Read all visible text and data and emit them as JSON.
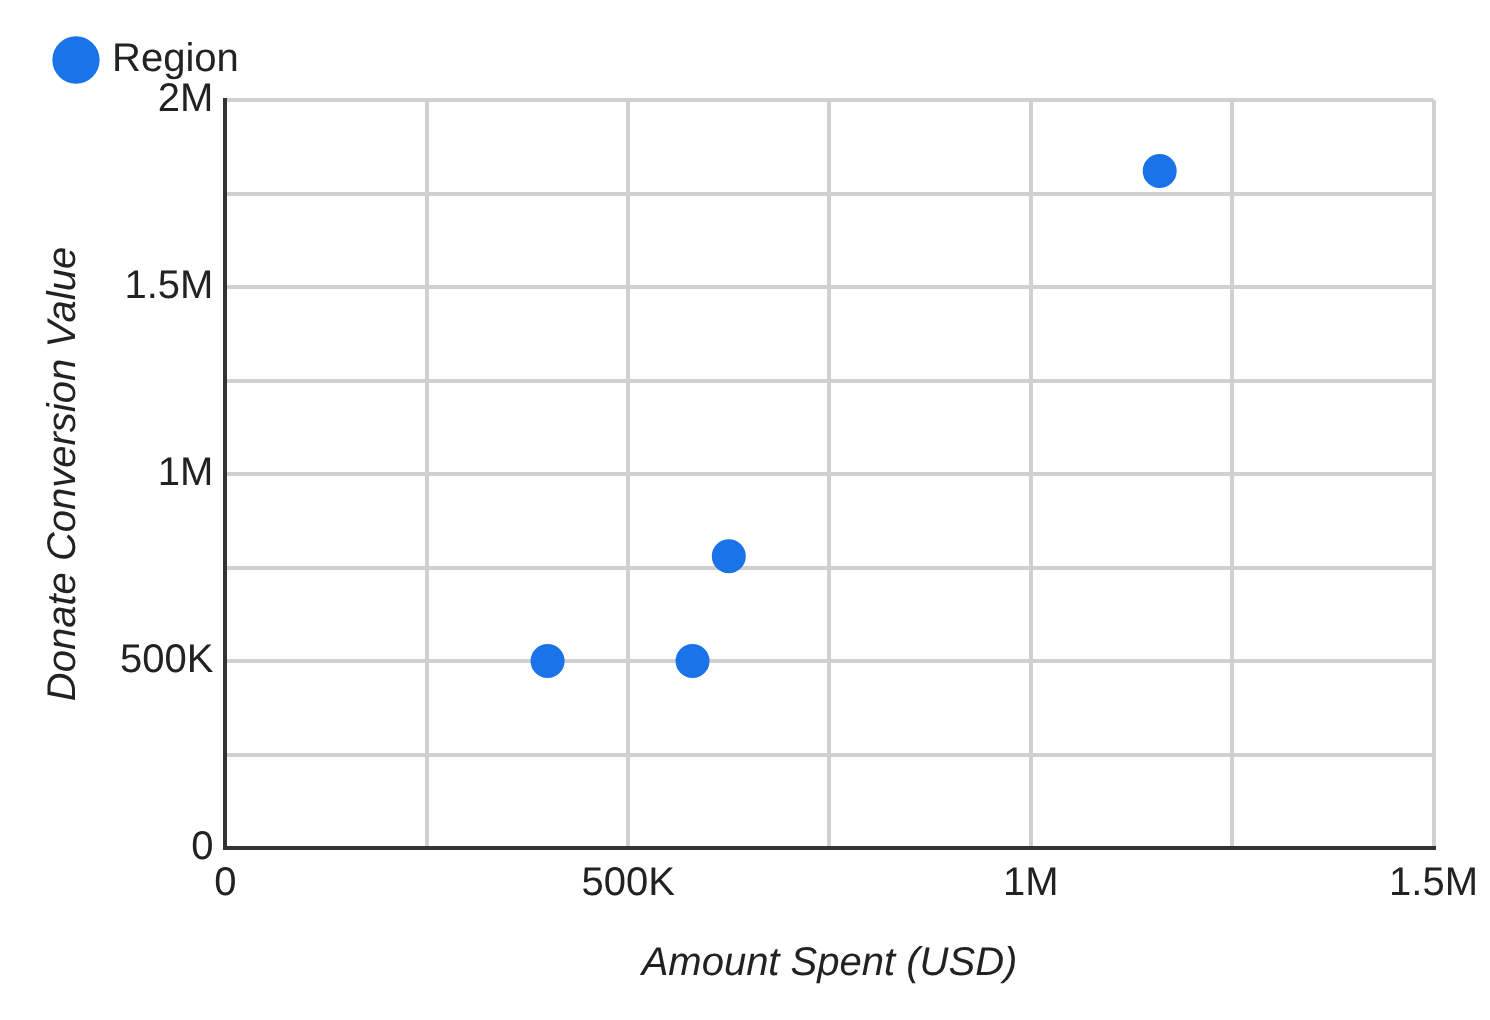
{
  "chart_data": {
    "type": "scatter",
    "xlabel": "Amount Spent (USD)",
    "ylabel": "Donate Conversion Value",
    "x": [
      400000,
      580000,
      625000,
      1160000
    ],
    "series": [
      {
        "name": "Region",
        "color": "#1a73e8",
        "values": [
          500000,
          500000,
          780000,
          1810000
        ]
      }
    ],
    "xlim": [
      0,
      1500000
    ],
    "ylim": [
      0,
      2000000
    ],
    "xticks": [
      0,
      {
        "value": 250000,
        "label": null
      },
      {
        "value": 500000,
        "label": "500K"
      },
      {
        "value": 750000,
        "label": null
      },
      {
        "value": 1000000,
        "label": "1M"
      },
      {
        "value": 1250000,
        "label": null
      },
      {
        "value": 1500000,
        "label": "1.5M"
      }
    ],
    "yticks": [
      0,
      {
        "value": 250000,
        "label": null
      },
      {
        "value": 500000,
        "label": "500K"
      },
      {
        "value": 750000,
        "label": null
      },
      {
        "value": 1000000,
        "label": "1M"
      },
      {
        "value": 1250000,
        "label": null
      },
      {
        "value": 1500000,
        "label": "1.5M"
      },
      {
        "value": 1750000,
        "label": null
      },
      {
        "value": 2000000,
        "label": "2M"
      }
    ],
    "grid": true,
    "legend": "top left",
    "marker": "circle"
  }
}
